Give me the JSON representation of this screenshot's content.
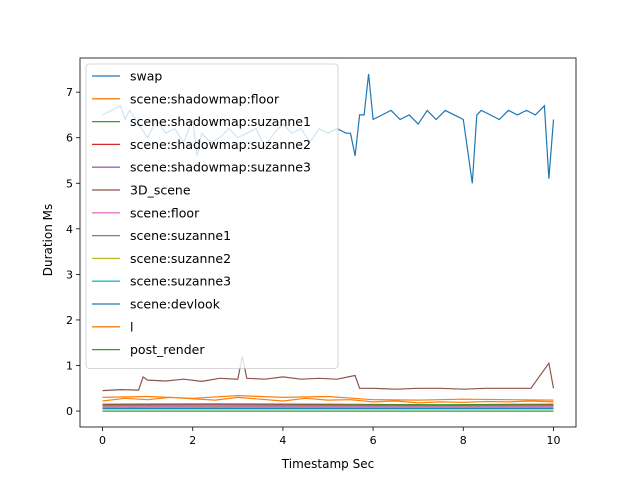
{
  "chart_data": {
    "type": "line",
    "title": "",
    "xlabel": "Timestamp Sec",
    "ylabel": "Duration Ms",
    "xlim": [
      -0.5,
      10.5
    ],
    "ylim": [
      -0.35,
      7.75
    ],
    "xticks": [
      0,
      2,
      4,
      6,
      8,
      10
    ],
    "yticks": [
      0,
      1,
      2,
      3,
      4,
      5,
      6,
      7
    ],
    "grid": false,
    "legend_position": "top-left",
    "series": [
      {
        "name": "swap",
        "color": "#1f77b4",
        "x": [
          0.0,
          0.2,
          0.4,
          0.5,
          0.6,
          0.8,
          1.0,
          1.2,
          1.4,
          1.6,
          1.8,
          2.0,
          2.1,
          2.2,
          2.4,
          2.6,
          2.8,
          3.0,
          3.2,
          3.4,
          3.6,
          3.8,
          4.0,
          4.2,
          4.4,
          4.6,
          4.8,
          5.0,
          5.2,
          5.4,
          5.5,
          5.6,
          5.7,
          5.8,
          5.9,
          6.0,
          6.2,
          6.4,
          6.6,
          6.8,
          7.0,
          7.2,
          7.4,
          7.6,
          7.8,
          8.0,
          8.2,
          8.3,
          8.4,
          8.6,
          8.8,
          9.0,
          9.2,
          9.4,
          9.6,
          9.8,
          9.9,
          10.0
        ],
        "y": [
          6.5,
          6.6,
          6.7,
          6.4,
          6.6,
          6.3,
          6.0,
          6.4,
          6.1,
          6.2,
          5.9,
          6.4,
          5.6,
          6.1,
          5.9,
          6.0,
          6.2,
          6.0,
          6.1,
          6.2,
          5.8,
          6.1,
          6.3,
          6.1,
          6.2,
          5.9,
          6.2,
          6.1,
          6.2,
          6.1,
          6.1,
          5.6,
          6.5,
          6.5,
          7.4,
          6.4,
          6.5,
          6.6,
          6.4,
          6.5,
          6.3,
          6.6,
          6.4,
          6.6,
          6.5,
          6.4,
          5.0,
          6.5,
          6.6,
          6.5,
          6.4,
          6.6,
          6.5,
          6.6,
          6.5,
          6.7,
          5.1,
          6.4
        ]
      },
      {
        "name": "scene:shadowmap:floor",
        "color": "#ff7f0e",
        "x": [
          0.0,
          0.5,
          1.0,
          1.5,
          2.0,
          2.5,
          3.0,
          3.5,
          4.0,
          4.5,
          5.0,
          5.5,
          6.0,
          6.5,
          7.0,
          7.5,
          8.0,
          8.5,
          9.0,
          9.5,
          10.0
        ],
        "y": [
          0.22,
          0.28,
          0.25,
          0.3,
          0.27,
          0.24,
          0.3,
          0.26,
          0.22,
          0.28,
          0.24,
          0.25,
          0.2,
          0.22,
          0.18,
          0.2,
          0.19,
          0.21,
          0.2,
          0.22,
          0.2
        ]
      },
      {
        "name": "scene:shadowmap:suzanne1",
        "color": "#2ca02c",
        "x": [
          0.0,
          2.5,
          5.0,
          7.5,
          10.0
        ],
        "y": [
          0.15,
          0.16,
          0.15,
          0.14,
          0.15
        ]
      },
      {
        "name": "scene:shadowmap:suzanne2",
        "color": "#d62728",
        "x": [
          0.0,
          2.5,
          5.0,
          7.5,
          10.0
        ],
        "y": [
          0.13,
          0.14,
          0.13,
          0.12,
          0.13
        ]
      },
      {
        "name": "scene:shadowmap:suzanne3",
        "color": "#9467bd",
        "x": [
          0.0,
          2.5,
          5.0,
          7.5,
          10.0
        ],
        "y": [
          0.12,
          0.13,
          0.12,
          0.11,
          0.12
        ]
      },
      {
        "name": "3D_scene",
        "color": "#8c564b",
        "x": [
          0.0,
          0.4,
          0.8,
          0.9,
          1.0,
          1.4,
          1.8,
          2.2,
          2.6,
          3.0,
          3.1,
          3.2,
          3.6,
          4.0,
          4.4,
          4.8,
          5.2,
          5.6,
          5.7,
          6.0,
          6.5,
          7.0,
          7.5,
          8.0,
          8.5,
          9.0,
          9.5,
          9.9,
          10.0
        ],
        "y": [
          0.45,
          0.47,
          0.46,
          0.75,
          0.68,
          0.66,
          0.7,
          0.65,
          0.72,
          0.7,
          1.2,
          0.72,
          0.7,
          0.75,
          0.7,
          0.72,
          0.7,
          0.78,
          0.5,
          0.5,
          0.48,
          0.5,
          0.5,
          0.48,
          0.5,
          0.5,
          0.5,
          1.05,
          0.5
        ]
      },
      {
        "name": "scene:floor",
        "color": "#e377c2",
        "x": [
          0.0,
          2.5,
          5.0,
          7.5,
          10.0
        ],
        "y": [
          0.1,
          0.11,
          0.1,
          0.1,
          0.1
        ]
      },
      {
        "name": "scene:suzanne1",
        "color": "#7f7f7f",
        "x": [
          0.0,
          2.5,
          5.0,
          7.5,
          10.0
        ],
        "y": [
          0.08,
          0.09,
          0.08,
          0.08,
          0.08
        ]
      },
      {
        "name": "scene:suzanne2",
        "color": "#bcbd22",
        "x": [
          0.0,
          2.5,
          5.0,
          7.5,
          10.0
        ],
        "y": [
          0.07,
          0.08,
          0.07,
          0.07,
          0.07
        ]
      },
      {
        "name": "scene:suzanne3",
        "color": "#17becf",
        "x": [
          0.0,
          2.5,
          5.0,
          7.5,
          10.0
        ],
        "y": [
          0.06,
          0.07,
          0.06,
          0.06,
          0.06
        ]
      },
      {
        "name": "scene:devlook",
        "color": "#1f77b4",
        "x": [
          0.0,
          2.5,
          5.0,
          7.5,
          10.0
        ],
        "y": [
          0.05,
          0.05,
          0.05,
          0.05,
          0.05
        ]
      },
      {
        "name": "l",
        "color": "#ff7f0e",
        "x": [
          0.0,
          1.0,
          2.0,
          3.0,
          4.0,
          5.0,
          6.0,
          7.0,
          8.0,
          9.0,
          10.0
        ],
        "y": [
          0.3,
          0.32,
          0.28,
          0.34,
          0.3,
          0.32,
          0.25,
          0.24,
          0.26,
          0.25,
          0.24
        ]
      },
      {
        "name": "post_render",
        "color": "#2ca02c",
        "x": [
          0.0,
          2.5,
          5.0,
          7.5,
          10.0
        ],
        "y": [
          0.0,
          0.0,
          0.0,
          0.0,
          0.0
        ]
      }
    ]
  }
}
